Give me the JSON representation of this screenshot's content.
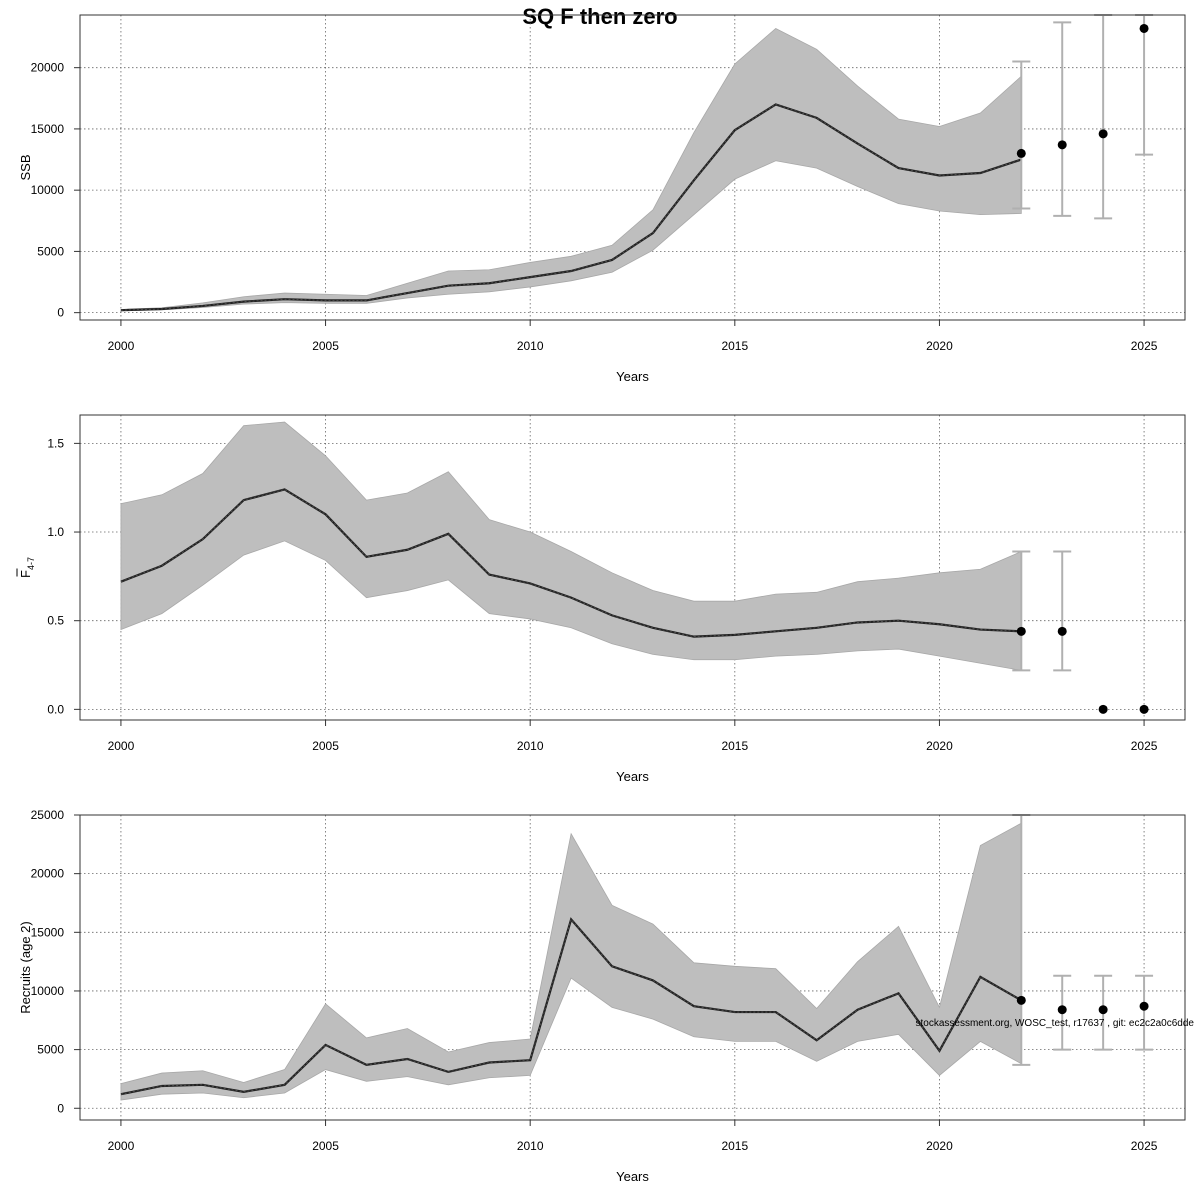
{
  "title": "SQ F then zero",
  "footnote": "stockassessment.org, WOSC_test, r17637 , git: ec2c2a0c6dde",
  "colors": {
    "band": "#bebebe",
    "band_edge": "#a8a8a8",
    "line": "#222222",
    "errorbar": "#b0b0b0",
    "point": "#000000",
    "grid": "#666666"
  },
  "chart_data": [
    {
      "type": "line",
      "ylabel": "SSB",
      "xlabel": "Years",
      "xlim": [
        1999,
        2026
      ],
      "ylim": [
        -600,
        24300
      ],
      "xticks": [
        2000,
        2005,
        2010,
        2015,
        2020,
        2025
      ],
      "yticks": [
        0,
        5000,
        10000,
        15000,
        20000
      ],
      "grid": true,
      "x": [
        2000,
        2001,
        2002,
        2003,
        2004,
        2005,
        2006,
        2007,
        2008,
        2009,
        2010,
        2011,
        2012,
        2013,
        2014,
        2015,
        2016,
        2017,
        2018,
        2019,
        2020,
        2021,
        2022
      ],
      "estimate": [
        200,
        300,
        550,
        900,
        1100,
        1000,
        1000,
        1600,
        2200,
        2400,
        2900,
        3400,
        4300,
        6500,
        10800,
        14900,
        17000,
        15900,
        13800,
        11800,
        11200,
        11400,
        12500
      ],
      "lower": [
        150,
        230,
        420,
        700,
        820,
        760,
        760,
        1200,
        1500,
        1700,
        2100,
        2600,
        3300,
        5100,
        8000,
        10900,
        12400,
        11800,
        10300,
        8900,
        8300,
        8000,
        8100
      ],
      "upper": [
        260,
        400,
        800,
        1300,
        1600,
        1500,
        1400,
        2400,
        3400,
        3500,
        4100,
        4600,
        5500,
        8400,
        14700,
        20300,
        23200,
        21500,
        18500,
        15800,
        15200,
        16300,
        19300
      ],
      "forecast": {
        "x": [
          2022,
          2023,
          2024,
          2025
        ],
        "median": [
          13000,
          13700,
          14600,
          23200
        ],
        "low": [
          8500,
          7900,
          7700,
          12900
        ],
        "high": [
          20500,
          23700,
          24300,
          24300
        ]
      }
    },
    {
      "type": "line",
      "ylabel": "F",
      "ylabel_sub": "4-7",
      "xlabel": "Years",
      "xlim": [
        1999,
        2026
      ],
      "ylim": [
        -0.06,
        1.66
      ],
      "xticks": [
        2000,
        2005,
        2010,
        2015,
        2020,
        2025
      ],
      "yticks": [
        0.0,
        0.5,
        1.0,
        1.5
      ],
      "ytick_labels": [
        "0.0",
        "0.5",
        "1.0",
        "1.5"
      ],
      "grid": true,
      "x": [
        2000,
        2001,
        2002,
        2003,
        2004,
        2005,
        2006,
        2007,
        2008,
        2009,
        2010,
        2011,
        2012,
        2013,
        2014,
        2015,
        2016,
        2017,
        2018,
        2019,
        2020,
        2021,
        2022
      ],
      "estimate": [
        0.72,
        0.81,
        0.96,
        1.18,
        1.24,
        1.1,
        0.86,
        0.9,
        0.99,
        0.76,
        0.71,
        0.63,
        0.53,
        0.46,
        0.41,
        0.42,
        0.44,
        0.46,
        0.49,
        0.5,
        0.48,
        0.45,
        0.44
      ],
      "lower": [
        0.45,
        0.54,
        0.7,
        0.87,
        0.95,
        0.84,
        0.63,
        0.67,
        0.73,
        0.54,
        0.51,
        0.46,
        0.37,
        0.31,
        0.28,
        0.28,
        0.3,
        0.31,
        0.33,
        0.34,
        0.3,
        0.26,
        0.22
      ],
      "upper": [
        1.16,
        1.21,
        1.33,
        1.6,
        1.62,
        1.43,
        1.18,
        1.22,
        1.34,
        1.07,
        1.0,
        0.89,
        0.77,
        0.67,
        0.61,
        0.61,
        0.65,
        0.66,
        0.72,
        0.74,
        0.77,
        0.79,
        0.89
      ],
      "forecast": {
        "x": [
          2022,
          2023,
          2024,
          2025
        ],
        "median": [
          0.44,
          0.44,
          0.0,
          0.0
        ],
        "low": [
          0.22,
          0.22,
          null,
          null
        ],
        "high": [
          0.89,
          0.89,
          null,
          null
        ]
      }
    },
    {
      "type": "line",
      "ylabel": "Recruits (age 2)",
      "xlabel": "Years",
      "xlim": [
        1999,
        2026
      ],
      "ylim": [
        -1000,
        25000
      ],
      "xticks": [
        2000,
        2005,
        2010,
        2015,
        2020,
        2025
      ],
      "yticks": [
        0,
        5000,
        10000,
        15000,
        20000,
        25000
      ],
      "grid": true,
      "x": [
        2000,
        2001,
        2002,
        2003,
        2004,
        2005,
        2006,
        2007,
        2008,
        2009,
        2010,
        2011,
        2012,
        2013,
        2014,
        2015,
        2016,
        2017,
        2018,
        2019,
        2020,
        2021,
        2022
      ],
      "estimate": [
        1200,
        1900,
        2000,
        1400,
        2000,
        5400,
        3700,
        4200,
        3100,
        3900,
        4100,
        16100,
        12100,
        10900,
        8700,
        8200,
        8200,
        5800,
        8400,
        9800,
        4900,
        11200,
        9200
      ],
      "lower": [
        700,
        1200,
        1300,
        900,
        1300,
        3300,
        2300,
        2700,
        2000,
        2600,
        2800,
        11100,
        8600,
        7600,
        6100,
        5700,
        5700,
        4000,
        5700,
        6300,
        2800,
        5700,
        3800
      ],
      "upper": [
        2100,
        3000,
        3200,
        2200,
        3300,
        8900,
        6000,
        6800,
        4800,
        5600,
        5900,
        23400,
        17300,
        15700,
        12400,
        12100,
        11900,
        8500,
        12500,
        15500,
        8600,
        22400,
        24300
      ],
      "forecast": {
        "x": [
          2022,
          2023,
          2024,
          2025
        ],
        "median": [
          9200,
          8400,
          8400,
          8700
        ],
        "low": [
          3700,
          5000,
          5000,
          5000
        ],
        "high": [
          25000,
          11300,
          11300,
          11300
        ]
      }
    }
  ]
}
